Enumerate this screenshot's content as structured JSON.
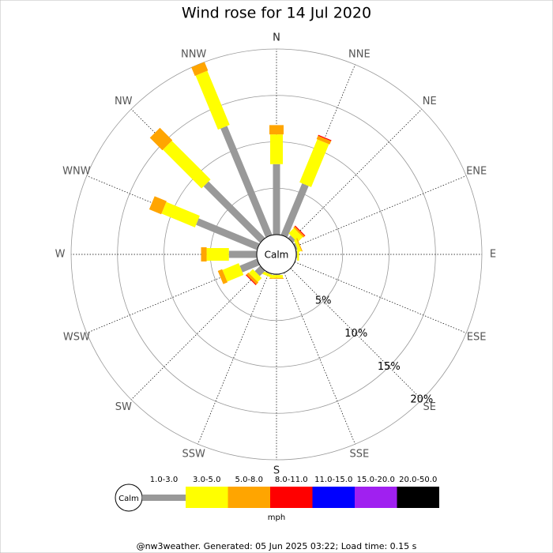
{
  "chart_data": {
    "type": "windrose",
    "title": "Wind rose for 14 Jul 2020",
    "directions": [
      "N",
      "NNE",
      "NE",
      "ENE",
      "E",
      "ESE",
      "SE",
      "SSE",
      "S",
      "SSW",
      "SW",
      "WSW",
      "W",
      "WNW",
      "NW",
      "NNW"
    ],
    "calm_label": "Calm",
    "unit": "mph",
    "rlim": [
      0,
      20
    ],
    "rticks": [
      {
        "value": 5,
        "label": "5%"
      },
      {
        "value": 10,
        "label": "10%"
      },
      {
        "value": 15,
        "label": "15%"
      },
      {
        "value": 20,
        "label": "20%"
      }
    ],
    "series": [
      {
        "name": "1.0-3.0",
        "color": "#999999",
        "values": [
          7.6,
          6.0,
          0.4,
          0.2,
          0.1,
          0,
          0,
          0,
          0.1,
          0.1,
          0.8,
          2.0,
          3.0,
          7.1,
          8.6,
          12.7
        ]
      },
      {
        "name": "3.0-5.0",
        "color": "#ffff00",
        "values": [
          3.2,
          5.0,
          0.8,
          0.3,
          0.2,
          0,
          0,
          0,
          0.3,
          0.3,
          0.6,
          1.9,
          2.4,
          3.9,
          5.9,
          6.3
        ]
      },
      {
        "name": "5.0-8.0",
        "color": "#ffa500",
        "values": [
          1.0,
          0.4,
          0.2,
          0.1,
          0,
          0,
          0,
          0,
          0.1,
          0,
          0.3,
          0.5,
          0.6,
          1.4,
          1.9,
          1.0
        ]
      },
      {
        "name": "8.0-11.0",
        "color": "#ff0000",
        "values": [
          0,
          0.1,
          0.1,
          0,
          0,
          0,
          0,
          0,
          0,
          0,
          0.1,
          0,
          0,
          0,
          0,
          0
        ]
      },
      {
        "name": "11.0-15.0",
        "color": "#0000ff",
        "values": [
          0,
          0,
          0,
          0,
          0,
          0,
          0,
          0,
          0,
          0,
          0,
          0,
          0,
          0,
          0,
          0
        ]
      },
      {
        "name": "15.0-20.0",
        "color": "#a020f0",
        "values": [
          0,
          0,
          0,
          0,
          0,
          0,
          0,
          0,
          0,
          0,
          0,
          0,
          0,
          0,
          0,
          0
        ]
      },
      {
        "name": "20.0-50.0",
        "color": "#000000",
        "values": [
          0,
          0,
          0,
          0,
          0,
          0,
          0,
          0,
          0,
          0,
          0,
          0,
          0,
          0,
          0,
          0
        ]
      }
    ]
  },
  "footer": "@nw3weather. Generated: 05 Jun 2025 03:22; Load time: 0.15 s"
}
